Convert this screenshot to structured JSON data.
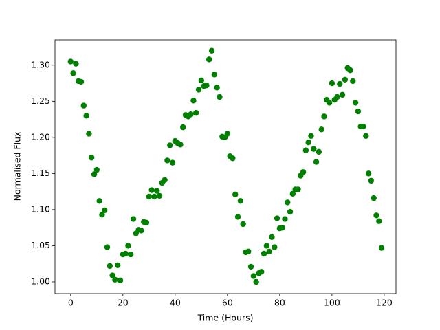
{
  "chart_data": {
    "type": "scatter",
    "xlabel": "Time (Hours)",
    "ylabel": "Normalised Flux",
    "x": [
      0,
      1,
      2,
      3,
      4,
      5,
      6,
      7,
      8,
      9,
      10,
      11,
      12,
      13,
      14,
      15,
      16,
      17,
      18,
      19,
      20,
      21,
      22,
      23,
      24,
      25,
      26,
      27,
      28,
      29,
      30,
      31,
      32,
      33,
      34,
      35,
      36,
      37,
      38,
      39,
      40,
      41,
      42,
      43,
      44,
      45,
      46,
      47,
      48,
      49,
      50,
      51,
      52,
      53,
      54,
      55,
      56,
      57,
      58,
      59,
      60,
      61,
      62,
      63,
      64,
      65,
      66,
      67,
      68,
      69,
      70,
      71,
      72,
      73,
      74,
      75,
      76,
      77,
      78,
      79,
      80,
      81,
      82,
      83,
      84,
      85,
      86,
      87,
      88,
      89,
      90,
      91,
      92,
      93,
      94,
      95,
      96,
      97,
      98,
      99,
      100,
      101,
      102,
      103,
      104,
      105,
      106,
      107,
      108,
      109,
      110,
      111,
      112,
      113,
      114,
      115,
      116,
      117,
      118,
      119
    ],
    "series": [
      {
        "color": "#008000",
        "values": [
          1.305,
          1.289,
          1.302,
          1.278,
          1.277,
          1.244,
          1.23,
          1.205,
          1.172,
          1.149,
          1.155,
          1.112,
          1.093,
          1.099,
          1.048,
          1.022,
          1.009,
          1.003,
          1.023,
          1.002,
          1.038,
          1.039,
          1.05,
          1.038,
          1.087,
          1.067,
          1.072,
          1.071,
          1.083,
          1.082,
          1.118,
          1.127,
          1.118,
          1.126,
          1.119,
          1.137,
          1.141,
          1.168,
          1.189,
          1.165,
          1.195,
          1.192,
          1.19,
          1.214,
          1.231,
          1.229,
          1.232,
          1.251,
          1.234,
          1.266,
          1.279,
          1.271,
          1.272,
          1.308,
          1.32,
          1.287,
          1.269,
          1.256,
          1.201,
          1.2,
          1.205,
          1.174,
          1.171,
          1.121,
          1.09,
          1.112,
          1.08,
          1.041,
          1.042,
          1.021,
          1.008,
          1.0,
          1.012,
          1.014,
          1.039,
          1.05,
          1.042,
          1.062,
          1.048,
          1.088,
          1.074,
          1.075,
          1.087,
          1.11,
          1.097,
          1.122,
          1.128,
          1.128,
          1.147,
          1.152,
          1.182,
          1.193,
          1.202,
          1.184,
          1.166,
          1.18,
          1.211,
          1.229,
          1.252,
          1.248,
          1.275,
          1.252,
          1.256,
          1.274,
          1.259,
          1.28,
          1.296,
          1.293,
          1.278,
          1.248,
          1.236,
          1.215,
          1.215,
          1.202,
          1.15,
          1.14,
          1.116,
          1.092,
          1.084,
          1.047
        ]
      }
    ],
    "xlim": [
      -6,
      124.5
    ],
    "ylim": [
      0.9838,
      1.335
    ],
    "xticks": [
      0,
      20,
      40,
      60,
      80,
      100,
      120
    ],
    "yticks": [
      {
        "value": 1.0,
        "label": "1.00"
      },
      1.05,
      {
        "value": 1.1,
        "label": "1.10"
      },
      1.15,
      {
        "value": 1.2,
        "label": "1.20"
      },
      1.25,
      {
        "value": 1.3,
        "label": "1.30"
      }
    ]
  }
}
